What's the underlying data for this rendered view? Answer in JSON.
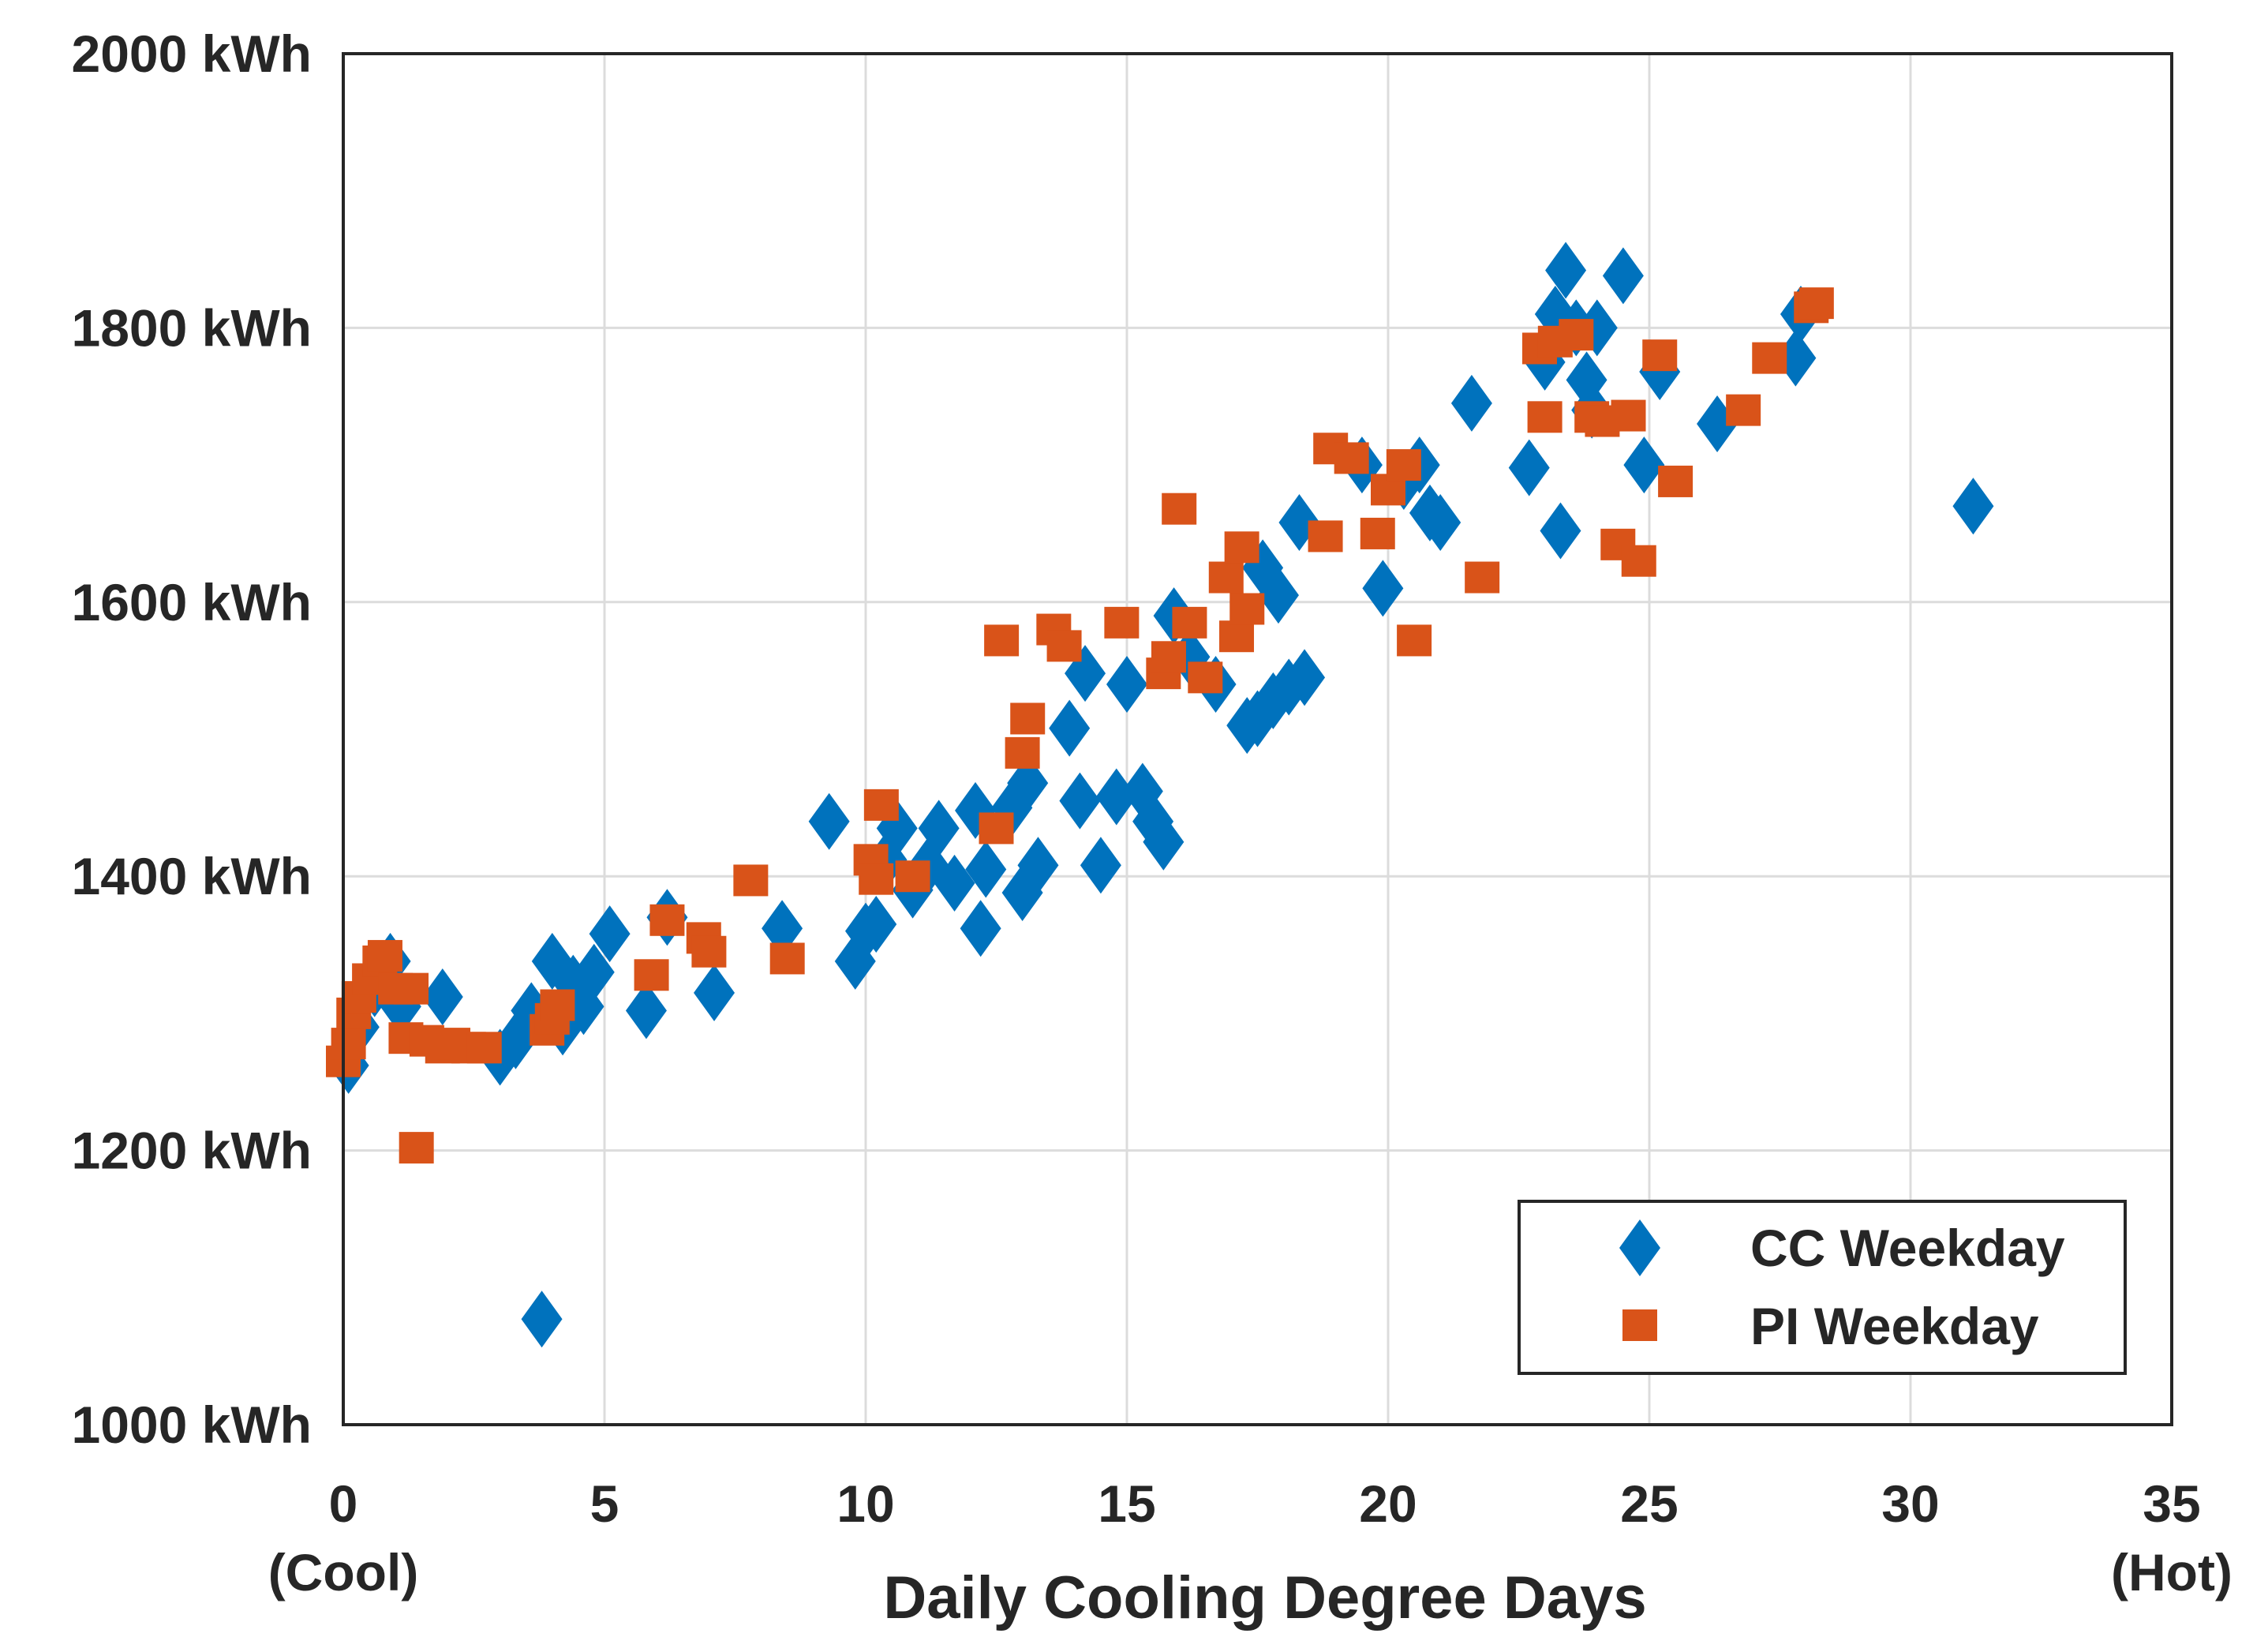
{
  "chart_data": {
    "type": "scatter",
    "title": "",
    "xlabel": "Daily Cooling Degree Days",
    "ylabel": "",
    "xlim": [
      0,
      35
    ],
    "ylim": [
      1000,
      2000
    ],
    "grid": true,
    "legend_position": "bottom-right",
    "x_ticks": [
      {
        "value": 0,
        "label": "0"
      },
      {
        "value": 5,
        "label": "5"
      },
      {
        "value": 10,
        "label": "10"
      },
      {
        "value": 15,
        "label": "15"
      },
      {
        "value": 20,
        "label": "20"
      },
      {
        "value": 25,
        "label": "25"
      },
      {
        "value": 30,
        "label": "30"
      },
      {
        "value": 35,
        "label": "35"
      }
    ],
    "y_ticks": [
      {
        "value": 1000,
        "label": "1000 kWh"
      },
      {
        "value": 1200,
        "label": "1200 kWh"
      },
      {
        "value": 1400,
        "label": "1400 kWh"
      },
      {
        "value": 1600,
        "label": "1600 kWh"
      },
      {
        "value": 1800,
        "label": "1800 kWh"
      },
      {
        "value": 2000,
        "label": "2000 kWh"
      }
    ],
    "x_end_annotations": {
      "left": "(Cool)",
      "right": "(Hot)"
    },
    "series": [
      {
        "name": "CC Weekday",
        "marker": "diamond",
        "color": "#0072BD",
        "points": [
          [
            0.1,
            1262
          ],
          [
            0.3,
            1290
          ],
          [
            0.6,
            1318
          ],
          [
            0.9,
            1338
          ],
          [
            1.1,
            1305
          ],
          [
            1.9,
            1312
          ],
          [
            3.0,
            1268
          ],
          [
            3.3,
            1280
          ],
          [
            3.6,
            1302
          ],
          [
            3.8,
            1077
          ],
          [
            4.0,
            1338
          ],
          [
            4.2,
            1290
          ],
          [
            4.4,
            1322
          ],
          [
            4.6,
            1305
          ],
          [
            4.8,
            1330
          ],
          [
            5.1,
            1358
          ],
          [
            5.8,
            1302
          ],
          [
            6.2,
            1370
          ],
          [
            7.1,
            1315
          ],
          [
            8.4,
            1362
          ],
          [
            9.3,
            1440
          ],
          [
            9.8,
            1338
          ],
          [
            10.0,
            1360
          ],
          [
            10.2,
            1365
          ],
          [
            10.4,
            1412
          ],
          [
            10.6,
            1435
          ],
          [
            10.9,
            1390
          ],
          [
            11.2,
            1408
          ],
          [
            11.4,
            1435
          ],
          [
            11.7,
            1395
          ],
          [
            12.1,
            1448
          ],
          [
            12.2,
            1362
          ],
          [
            12.3,
            1405
          ],
          [
            12.8,
            1450
          ],
          [
            13.1,
            1468
          ],
          [
            13.0,
            1388
          ],
          [
            13.3,
            1408
          ],
          [
            13.9,
            1508
          ],
          [
            14.1,
            1455
          ],
          [
            14.2,
            1548
          ],
          [
            14.5,
            1408
          ],
          [
            14.8,
            1458
          ],
          [
            15.0,
            1540
          ],
          [
            15.3,
            1462
          ],
          [
            15.5,
            1440
          ],
          [
            15.7,
            1425
          ],
          [
            15.9,
            1590
          ],
          [
            16.2,
            1560
          ],
          [
            16.7,
            1540
          ],
          [
            17.3,
            1510
          ],
          [
            17.5,
            1515
          ],
          [
            17.6,
            1625
          ],
          [
            17.8,
            1528
          ],
          [
            17.9,
            1605
          ],
          [
            18.1,
            1538
          ],
          [
            18.4,
            1545
          ],
          [
            18.3,
            1658
          ],
          [
            19.5,
            1700
          ],
          [
            19.9,
            1610
          ],
          [
            20.3,
            1688
          ],
          [
            20.6,
            1700
          ],
          [
            20.8,
            1665
          ],
          [
            21.0,
            1658
          ],
          [
            21.6,
            1745
          ],
          [
            22.7,
            1698
          ],
          [
            23.0,
            1775
          ],
          [
            23.2,
            1810
          ],
          [
            23.3,
            1652
          ],
          [
            23.4,
            1842
          ],
          [
            23.6,
            1800
          ],
          [
            23.8,
            1762
          ],
          [
            23.9,
            1740
          ],
          [
            24.0,
            1800
          ],
          [
            24.5,
            1838
          ],
          [
            24.9,
            1700
          ],
          [
            25.2,
            1768
          ],
          [
            26.3,
            1730
          ],
          [
            27.8,
            1778
          ],
          [
            27.9,
            1810
          ],
          [
            31.2,
            1670
          ]
        ]
      },
      {
        "name": "PI Weekday",
        "marker": "square",
        "color": "#D95319",
        "points": [
          [
            0.0,
            1265
          ],
          [
            0.1,
            1278
          ],
          [
            0.2,
            1300
          ],
          [
            0.3,
            1312
          ],
          [
            0.5,
            1325
          ],
          [
            0.7,
            1338
          ],
          [
            0.8,
            1342
          ],
          [
            1.0,
            1318
          ],
          [
            1.2,
            1282
          ],
          [
            1.3,
            1318
          ],
          [
            1.4,
            1202
          ],
          [
            1.6,
            1280
          ],
          [
            1.9,
            1275
          ],
          [
            2.1,
            1278
          ],
          [
            2.4,
            1275
          ],
          [
            2.7,
            1275
          ],
          [
            3.9,
            1288
          ],
          [
            4.0,
            1296
          ],
          [
            4.1,
            1306
          ],
          [
            5.9,
            1328
          ],
          [
            6.2,
            1368
          ],
          [
            6.9,
            1355
          ],
          [
            7.0,
            1345
          ],
          [
            7.8,
            1397
          ],
          [
            8.5,
            1340
          ],
          [
            10.1,
            1412
          ],
          [
            10.2,
            1398
          ],
          [
            10.3,
            1452
          ],
          [
            10.9,
            1400
          ],
          [
            12.5,
            1435
          ],
          [
            12.6,
            1572
          ],
          [
            13.0,
            1490
          ],
          [
            13.1,
            1515
          ],
          [
            13.6,
            1580
          ],
          [
            13.8,
            1568
          ],
          [
            14.9,
            1585
          ],
          [
            15.7,
            1548
          ],
          [
            15.8,
            1560
          ],
          [
            16.0,
            1668
          ],
          [
            16.2,
            1585
          ],
          [
            16.5,
            1545
          ],
          [
            16.9,
            1618
          ],
          [
            17.1,
            1575
          ],
          [
            17.2,
            1640
          ],
          [
            17.3,
            1595
          ],
          [
            18.8,
            1648
          ],
          [
            18.9,
            1712
          ],
          [
            19.3,
            1705
          ],
          [
            19.8,
            1650
          ],
          [
            20.0,
            1682
          ],
          [
            20.3,
            1700
          ],
          [
            20.5,
            1572
          ],
          [
            21.8,
            1618
          ],
          [
            22.9,
            1785
          ],
          [
            23.0,
            1735
          ],
          [
            23.2,
            1790
          ],
          [
            23.6,
            1795
          ],
          [
            23.9,
            1735
          ],
          [
            24.1,
            1732
          ],
          [
            24.4,
            1642
          ],
          [
            24.6,
            1736
          ],
          [
            24.8,
            1630
          ],
          [
            25.2,
            1780
          ],
          [
            25.5,
            1688
          ],
          [
            26.8,
            1740
          ],
          [
            27.3,
            1778
          ],
          [
            28.1,
            1815
          ],
          [
            28.2,
            1818
          ]
        ]
      }
    ]
  }
}
